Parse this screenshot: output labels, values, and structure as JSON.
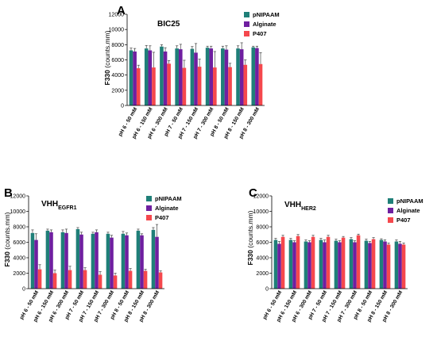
{
  "palette": {
    "pNIPAAM": "#1f7f78",
    "Alginate": "#6f1fa0",
    "P407": "#f5484d"
  },
  "chart_data": [
    {
      "panel": "A",
      "type": "bar",
      "title": "BIC25",
      "title_sub": "",
      "ylabel": "F330 (counts.mm)",
      "ylabel_main": "F330",
      "ylabel_unit": " (counts.mm)",
      "ylim": [
        0,
        12000
      ],
      "yticks": [
        "0",
        "2000",
        "4000",
        "6000",
        "8000",
        "10000",
        "12000"
      ],
      "legend_position": "top-right",
      "categories": [
        "pH 6 - 50 mM",
        "pH 6 - 150 mM",
        "pH 6 - 300 mM",
        "pH 7 - 50 mM",
        "pH 7 - 150 mM",
        "pH 7 - 300 mM",
        "pH 8 - 50 mM",
        "pH 8 - 150 mM",
        "pH 8 - 300 mM"
      ],
      "series": [
        {
          "name": "pNIPAAM",
          "values": [
            7250,
            7500,
            7750,
            7500,
            7450,
            7600,
            7500,
            7500,
            7650
          ],
          "errors": [
            300,
            400,
            250,
            350,
            300,
            200,
            300,
            350,
            150
          ]
        },
        {
          "name": "Alginate",
          "values": [
            7100,
            7250,
            7100,
            7400,
            6950,
            7500,
            7350,
            7400,
            7550
          ],
          "errors": [
            400,
            600,
            500,
            650,
            1200,
            300,
            500,
            850,
            250
          ]
        },
        {
          "name": "P407",
          "values": [
            4900,
            5000,
            5500,
            4950,
            5100,
            5000,
            5050,
            5350,
            5450
          ],
          "errors": [
            400,
            2000,
            400,
            1000,
            1000,
            2100,
            500,
            650,
            1500
          ]
        }
      ]
    },
    {
      "panel": "B",
      "type": "bar",
      "title": "VHH",
      "title_sub": "EGFR1",
      "ylabel": "F330 (counts.mm)",
      "ylabel_main": "F330",
      "ylabel_unit": " (counts.mm)",
      "ylim": [
        0,
        12000
      ],
      "yticks": [
        "0",
        "2000",
        "4000",
        "6000",
        "8000",
        "10000",
        "12000"
      ],
      "legend_position": "top-right",
      "categories": [
        "pH 6 - 50 mM",
        "pH 6 - 150 mM",
        "pH 6 - 300 mM",
        "pH 7 - 50 mM",
        "pH 7 - 150 mM",
        "pH 7 - 300 mM",
        "pH 8 - 50 mM",
        "pH 8 - 150 mM",
        "pH 8 - 300 mM"
      ],
      "series": [
        {
          "name": "pNIPAAM",
          "values": [
            7200,
            7500,
            7300,
            7700,
            7100,
            7100,
            7100,
            7500,
            7600
          ],
          "errors": [
            400,
            200,
            300,
            200,
            200,
            200,
            300,
            200,
            300
          ]
        },
        {
          "name": "Alginate",
          "values": [
            6300,
            7300,
            7200,
            7000,
            7300,
            6600,
            6900,
            6900,
            6700
          ],
          "errors": [
            800,
            300,
            500,
            300,
            300,
            300,
            300,
            200,
            1600
          ]
        },
        {
          "name": "P407",
          "values": [
            2500,
            2000,
            2400,
            2400,
            1800,
            1700,
            2300,
            2300,
            2100
          ],
          "errors": [
            600,
            400,
            500,
            300,
            400,
            300,
            300,
            200,
            200
          ]
        }
      ]
    },
    {
      "panel": "C",
      "type": "bar",
      "title": "VHH",
      "title_sub": "HER2",
      "ylabel": "F330 (counts.mm)",
      "ylabel_main": "F330",
      "ylabel_unit": " (counts.mm)",
      "ylim": [
        0,
        12000
      ],
      "yticks": [
        "0",
        "2000",
        "4000",
        "6000",
        "8000",
        "10000",
        "12000"
      ],
      "legend_position": "top-right",
      "categories": [
        "pH 6 - 50 mM",
        "pH 6 - 150 mM",
        "pH 6 - 300 mM",
        "pH 7 - 50 mM",
        "pH 7 - 150 mM",
        "pH 7 - 300 mM",
        "pH 8 - 50 mM",
        "pH 8 - 150 mM",
        "pH 8 - 300 mM"
      ],
      "series": [
        {
          "name": "pNIPAAM",
          "values": [
            6300,
            6300,
            6100,
            6300,
            6200,
            6400,
            6200,
            6300,
            6100
          ],
          "errors": [
            200,
            200,
            200,
            200,
            200,
            200,
            200,
            150,
            200
          ]
        },
        {
          "name": "Alginate",
          "values": [
            5800,
            6000,
            6000,
            6000,
            6000,
            6000,
            5900,
            6100,
            5800
          ],
          "errors": [
            300,
            200,
            200,
            300,
            200,
            200,
            200,
            200,
            300
          ]
        },
        {
          "name": "P407",
          "values": [
            6700,
            6800,
            6700,
            6700,
            6600,
            6900,
            6400,
            5700,
            5700
          ],
          "errors": [
            200,
            200,
            200,
            200,
            150,
            150,
            200,
            200,
            200
          ]
        }
      ]
    }
  ]
}
